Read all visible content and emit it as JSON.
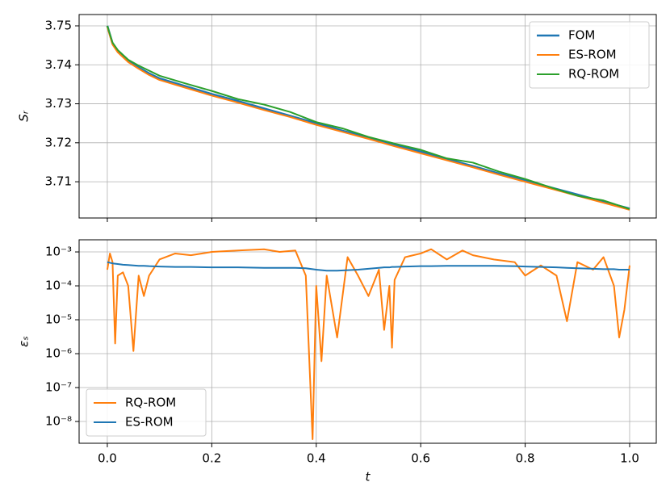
{
  "chart_data": [
    {
      "type": "line",
      "ylabel": "Sᵣ",
      "legend": "upper right",
      "grid": true,
      "xtick_labels": false,
      "xlim": [
        -0.054,
        1.051
      ],
      "xticks": [
        {
          "value": 0,
          "label": "0.0"
        },
        0.2,
        0.4,
        0.6,
        0.8,
        {
          "value": 1,
          "label": "1.0"
        }
      ],
      "ylim": [
        3.7007,
        3.7529
      ],
      "yticks": [
        3.71,
        3.72,
        3.73,
        3.74,
        3.75
      ],
      "x": [
        0,
        0.01,
        0.02,
        0.04,
        0.06,
        0.08,
        0.1,
        0.15,
        0.2,
        0.25,
        0.3,
        0.35,
        0.4,
        0.45,
        0.5,
        0.55,
        0.6,
        0.65,
        0.7,
        0.75,
        0.8,
        0.85,
        0.9,
        0.95,
        1.0
      ],
      "series": [
        {
          "name": "FOM",
          "color": "#1f77b4",
          "width": 2.6,
          "values": [
            3.75,
            3.7455,
            3.7435,
            3.741,
            3.7393,
            3.7378,
            3.7365,
            3.7345,
            3.7325,
            3.7307,
            3.7288,
            3.7269,
            3.725,
            3.7231,
            3.7213,
            3.7195,
            3.7177,
            3.7158,
            3.714,
            3.7121,
            3.7103,
            3.7085,
            3.7067,
            3.7049,
            3.7031
          ]
        },
        {
          "name": "ES-ROM",
          "color": "#ff7f0e",
          "width": 2,
          "values": [
            3.7497,
            3.7452,
            3.7432,
            3.7407,
            3.739,
            3.7374,
            3.7361,
            3.7341,
            3.7321,
            3.7303,
            3.7284,
            3.7266,
            3.7246,
            3.7228,
            3.721,
            3.7191,
            3.7173,
            3.7155,
            3.7137,
            3.7118,
            3.71,
            3.7082,
            3.7064,
            3.7046,
            3.7028
          ]
        },
        {
          "name": "RQ-ROM",
          "color": "#2ca02c",
          "width": 2,
          "values": [
            3.75,
            3.7457,
            3.7438,
            3.7413,
            3.7398,
            3.7385,
            3.7372,
            3.7352,
            3.7333,
            3.7312,
            3.7298,
            3.7279,
            3.7253,
            3.7237,
            3.7215,
            3.7198,
            3.7182,
            3.716,
            3.7149,
            3.7126,
            3.7107,
            3.7085,
            3.7064,
            3.7052,
            3.703
          ]
        }
      ]
    },
    {
      "type": "line",
      "xlabel": "t",
      "ylabel": "εₛ",
      "legend": "lower left",
      "grid": true,
      "log": true,
      "xtick_labels": true,
      "xlim": [
        -0.054,
        1.051
      ],
      "xticks": [
        {
          "value": 0,
          "label": "0.0"
        },
        0.2,
        0.4,
        0.6,
        0.8,
        {
          "value": 1,
          "label": "1.0"
        }
      ],
      "ylim": [
        0.00228,
        2.28e-09
      ],
      "yticks": [
        {
          "value": 0.001,
          "label": "10⁻³"
        },
        {
          "value": 0.0001,
          "label": "10⁻⁴"
        },
        {
          "value": 1e-05,
          "label": "10⁻⁵"
        },
        {
          "value": 1e-06,
          "label": "10⁻⁶"
        },
        {
          "value": 1e-07,
          "label": "10⁻⁷"
        },
        {
          "value": 1e-08,
          "label": "10⁻⁸"
        }
      ],
      "x": [
        0,
        0.005,
        0.01,
        0.015,
        0.02,
        0.03,
        0.04,
        0.05,
        0.06,
        0.07,
        0.08,
        0.1,
        0.13,
        0.16,
        0.2,
        0.25,
        0.3,
        0.33,
        0.36,
        0.38,
        0.393,
        0.4,
        0.41,
        0.42,
        0.44,
        0.46,
        0.48,
        0.5,
        0.52,
        0.53,
        0.54,
        0.545,
        0.55,
        0.57,
        0.6,
        0.62,
        0.65,
        0.68,
        0.7,
        0.74,
        0.78,
        0.8,
        0.83,
        0.86,
        0.88,
        0.9,
        0.93,
        0.95,
        0.97,
        0.98,
        0.99,
        1.0
      ],
      "series": [
        {
          "name": "RQ-ROM",
          "color": "#ff7f0e",
          "width": 2,
          "values": [
            0.0003,
            0.0009,
            0.0005,
            2e-06,
            0.0002,
            0.00025,
            0.0001,
            1.2e-06,
            0.0002,
            5e-05,
            0.0002,
            0.0006,
            0.0009,
            0.0008,
            0.001,
            0.0011,
            0.0012,
            0.001,
            0.0011,
            0.0002,
            3e-09,
            0.0001,
            6e-07,
            0.0002,
            3e-06,
            0.0007,
            0.0002,
            5e-05,
            0.0003,
            5e-06,
            0.0001,
            1.5e-06,
            0.00015,
            0.0007,
            0.0009,
            0.0012,
            0.0006,
            0.0011,
            0.0008,
            0.0006,
            0.0005,
            0.0002,
            0.0004,
            0.0002,
            9e-06,
            0.0005,
            0.0003,
            0.0007,
            0.0001,
            3e-06,
            2e-05,
            0.0004
          ]
        },
        {
          "name": "ES-ROM",
          "color": "#1f77b4",
          "width": 2,
          "values": [
            0.0005,
            0.00048,
            0.00046,
            0.00045,
            0.00044,
            0.00042,
            0.00041,
            0.0004,
            0.00039,
            0.00039,
            0.00038,
            0.00037,
            0.00036,
            0.00036,
            0.00035,
            0.00035,
            0.00034,
            0.00034,
            0.00034,
            0.00033,
            0.00031,
            0.0003,
            0.00029,
            0.00028,
            0.00028,
            0.00029,
            0.0003,
            0.00032,
            0.00034,
            0.00035,
            0.00035,
            0.00036,
            0.00036,
            0.00037,
            0.00038,
            0.00038,
            0.00039,
            0.00039,
            0.00039,
            0.00039,
            0.00038,
            0.00037,
            0.00036,
            0.00035,
            0.00034,
            0.00033,
            0.00032,
            0.00031,
            0.00031,
            0.0003,
            0.0003,
            0.0003
          ]
        }
      ]
    }
  ]
}
